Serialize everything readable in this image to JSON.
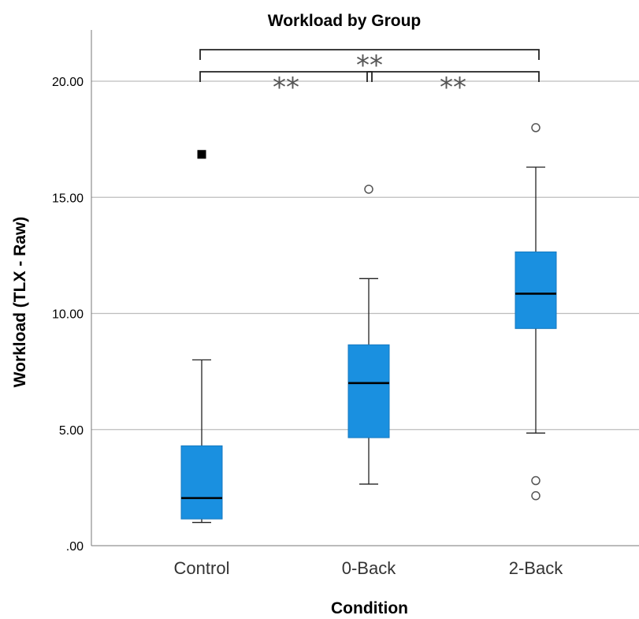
{
  "chart_data": {
    "type": "boxplot",
    "title": "Workload by Group",
    "xlabel": "Condition",
    "ylabel": "Workload (TLX - Raw)",
    "categories": [
      "Control",
      "0-Back",
      "2-Back"
    ],
    "ylim": [
      0,
      20
    ],
    "yticks": [
      {
        "value": 0,
        "label": ".00"
      },
      {
        "value": 5,
        "label": "5.00"
      },
      {
        "value": 10,
        "label": "10.00"
      },
      {
        "value": 15,
        "label": "15.00"
      },
      {
        "value": 20,
        "label": "20.00"
      }
    ],
    "grid": "horizontal",
    "box_color": "#1a90e0",
    "boxes": [
      {
        "category": "Control",
        "min": 1.0,
        "q1": 1.15,
        "median": 2.05,
        "q3": 4.3,
        "max": 8.0,
        "outliers": [],
        "extremes": [
          16.85
        ]
      },
      {
        "category": "0-Back",
        "min": 2.65,
        "q1": 4.65,
        "median": 7.0,
        "q3": 8.65,
        "max": 11.5,
        "outliers": [
          15.35
        ],
        "extremes": []
      },
      {
        "category": "2-Back",
        "min": 4.85,
        "q1": 9.35,
        "median": 10.85,
        "q3": 12.65,
        "max": 16.3,
        "outliers": [
          18.0,
          2.8,
          2.15
        ],
        "extremes": []
      }
    ],
    "significance": [
      {
        "from": "Control",
        "to": "2-Back",
        "label": "**",
        "level": 2
      },
      {
        "from": "Control",
        "to": "0-Back",
        "label": "**",
        "level": 1
      },
      {
        "from": "0-Back",
        "to": "2-Back",
        "label": "**",
        "level": 1
      }
    ]
  }
}
